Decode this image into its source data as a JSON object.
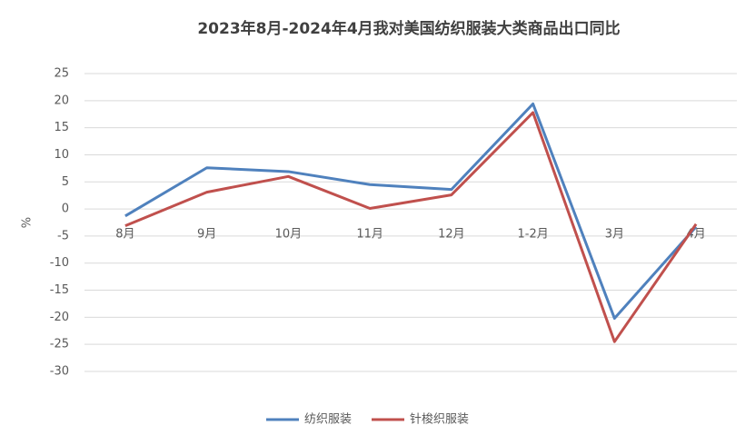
{
  "chart_data": {
    "type": "line",
    "title": "2023年8月-2024年4月我对美国纺织服装大类商品出口同比",
    "y_label": "%",
    "categories": [
      "8月",
      "9月",
      "10月",
      "11月",
      "12月",
      "1-2月",
      "3月",
      "4月"
    ],
    "series": [
      {
        "name": "纺织服装",
        "color": "#4f81bd",
        "values": [
          -1.3,
          7.6,
          6.9,
          4.5,
          3.6,
          19.4,
          -20.2,
          -3.3
        ]
      },
      {
        "name": "针梭织服装",
        "color": "#c0504d",
        "values": [
          -3.1,
          3.1,
          6.0,
          0.1,
          2.6,
          17.8,
          -24.5,
          -2.8
        ]
      }
    ],
    "ylim": [
      -30,
      25
    ],
    "yticks": [
      -30,
      -25,
      -20,
      -15,
      -10,
      -5,
      0,
      5,
      10,
      15,
      20,
      25
    ],
    "grid": true,
    "legend": "bottom"
  }
}
